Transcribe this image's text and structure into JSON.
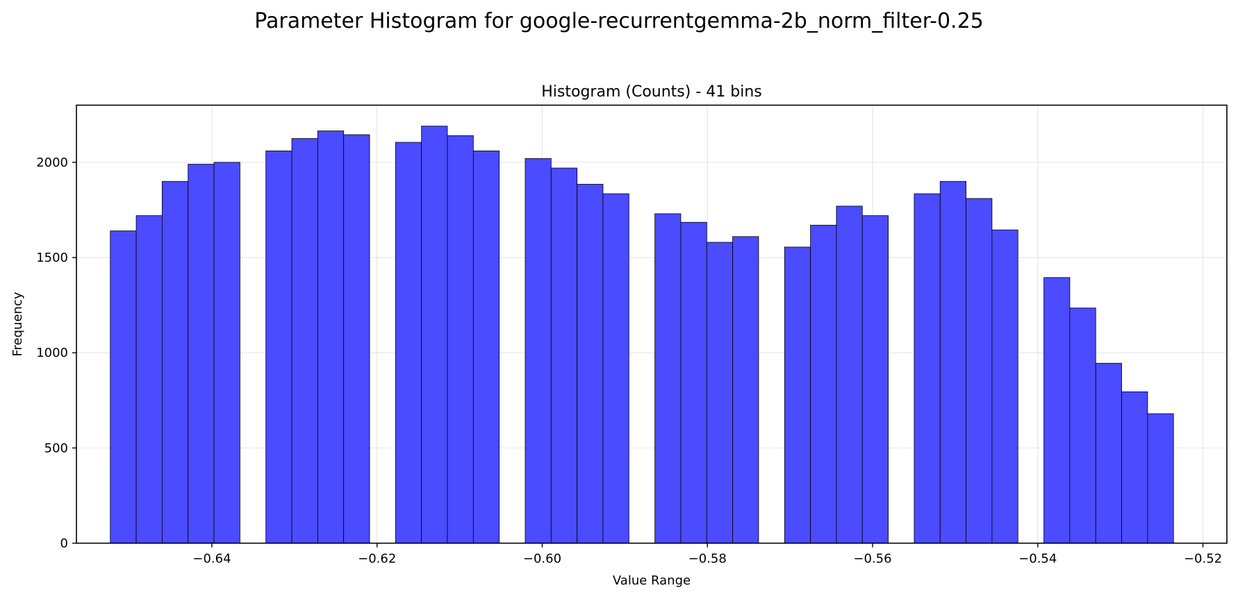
{
  "chart_data": {
    "type": "bar",
    "suptitle": "Parameter Histogram for google-recurrentgemma-2b_norm_filter-0.25",
    "title": "Histogram (Counts) - 41 bins",
    "xlabel": "Value Range",
    "ylabel": "Frequency",
    "xlim": [
      -0.6564,
      -0.5171
    ],
    "ylim": [
      0,
      2300
    ],
    "grid": true,
    "bar_color": "#4b4bff",
    "edge_color": "#000000",
    "xticks": [
      -0.64,
      -0.62,
      -0.6,
      -0.58,
      -0.56,
      -0.54,
      -0.52
    ],
    "xtick_labels": [
      "−0.64",
      "−0.62",
      "−0.60",
      "−0.58",
      "−0.56",
      "−0.54",
      "−0.52"
    ],
    "yticks": [
      0,
      500,
      1000,
      1500,
      2000
    ],
    "ytick_labels": [
      "0",
      "500",
      "1000",
      "1500",
      "2000"
    ],
    "bin_start": -0.6523,
    "bin_width": 0.00314,
    "values": [
      1640,
      1720,
      1900,
      1990,
      2000,
      0,
      2060,
      2125,
      2165,
      2145,
      0,
      2105,
      2190,
      2140,
      2060,
      0,
      2020,
      1970,
      1885,
      1835,
      0,
      1730,
      1685,
      1580,
      1610,
      0,
      1555,
      1670,
      1770,
      1720,
      0,
      1835,
      1900,
      1810,
      1645,
      0,
      1395,
      1235,
      945,
      795,
      680
    ]
  }
}
